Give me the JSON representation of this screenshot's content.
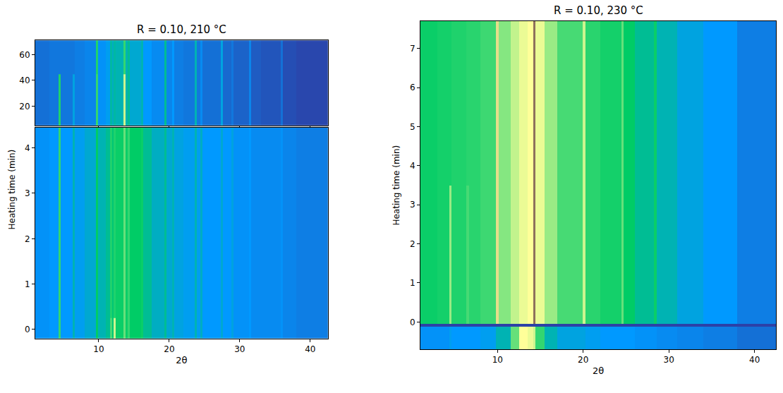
{
  "chart_data": [
    {
      "type": "heatmap",
      "title": "R = 0.10, 210 °C",
      "x_label": "2θ",
      "y_label": "Heating time (min)",
      "xlim": [
        1,
        42.5
      ],
      "xticks": [
        10,
        20,
        30,
        40
      ],
      "zlim": [
        0,
        1
      ],
      "grid": false,
      "panels": [
        {
          "ylim": [
            5,
            71
          ],
          "yticks": [
            20,
            40,
            60
          ],
          "x_edges": [
            1,
            3,
            4.35,
            4.65,
            6.35,
            6.65,
            8,
            9.65,
            9.95,
            11,
            11.65,
            11.95,
            12.15,
            12.45,
            13.55,
            13.85,
            14.15,
            14.45,
            16.05,
            16.35,
            17.5,
            19.35,
            19.65,
            20.45,
            20.75,
            22,
            23.65,
            23.95,
            24.45,
            24.75,
            27.35,
            27.65,
            28.85,
            29.15,
            31.35,
            31.65,
            33,
            35.85,
            36.15,
            38,
            42.5
          ],
          "y_edges": [
            5,
            45,
            71
          ],
          "z": [
            [
              0.09,
              0.1,
              0.28,
              0.1,
              0.17,
              0.11,
              0.12,
              0.3,
              0.14,
              0.16,
              0.21,
              0.19,
              0.21,
              0.2,
              0.45,
              0.2,
              0.22,
              0.18,
              0.2,
              0.15,
              0.13,
              0.22,
              0.12,
              0.15,
              0.11,
              0.1,
              0.2,
              0.1,
              0.13,
              0.09,
              0.17,
              0.08,
              0.1,
              0.07,
              0.12,
              0.06,
              0.05,
              0.09,
              0.04,
              0.03
            ],
            [
              0.09,
              0.1,
              0.1,
              0.1,
              0.1,
              0.11,
              0.12,
              0.28,
              0.14,
              0.16,
              0.21,
              0.19,
              0.21,
              0.2,
              0.3,
              0.2,
              0.22,
              0.18,
              0.2,
              0.15,
              0.13,
              0.22,
              0.12,
              0.15,
              0.11,
              0.1,
              0.2,
              0.1,
              0.13,
              0.09,
              0.17,
              0.08,
              0.1,
              0.07,
              0.12,
              0.06,
              0.05,
              0.09,
              0.04,
              0.03
            ]
          ]
        },
        {
          "ylim": [
            -0.2,
            4.45
          ],
          "yticks": [
            0,
            1,
            2,
            3,
            4
          ],
          "x_edges": [
            1,
            3,
            4.35,
            4.65,
            6.35,
            6.65,
            8,
            9.65,
            9.95,
            11,
            11.65,
            11.95,
            12.15,
            12.45,
            13.55,
            13.85,
            14.15,
            14.45,
            16.05,
            16.35,
            17.5,
            19.35,
            19.65,
            20.45,
            20.75,
            22,
            23.65,
            23.95,
            24.45,
            24.75,
            27.35,
            27.65,
            28.85,
            29.15,
            31.35,
            31.65,
            33,
            35.85,
            36.15,
            38,
            42.5
          ],
          "y_edges": [
            -0.2,
            0.25,
            4.45
          ],
          "z": [
            [
              0.14,
              0.15,
              0.3,
              0.15,
              0.2,
              0.16,
              0.18,
              0.25,
              0.2,
              0.22,
              0.32,
              0.24,
              0.45,
              0.26,
              0.35,
              0.26,
              0.3,
              0.25,
              0.26,
              0.22,
              0.19,
              0.22,
              0.18,
              0.2,
              0.17,
              0.16,
              0.2,
              0.16,
              0.19,
              0.15,
              0.18,
              0.15,
              0.17,
              0.14,
              0.15,
              0.13,
              0.13,
              0.14,
              0.12,
              0.11
            ],
            [
              0.14,
              0.15,
              0.3,
              0.15,
              0.2,
              0.16,
              0.18,
              0.25,
              0.2,
              0.22,
              0.28,
              0.24,
              0.28,
              0.26,
              0.35,
              0.26,
              0.3,
              0.25,
              0.26,
              0.22,
              0.19,
              0.22,
              0.18,
              0.2,
              0.17,
              0.16,
              0.2,
              0.16,
              0.19,
              0.15,
              0.18,
              0.15,
              0.17,
              0.14,
              0.15,
              0.13,
              0.13,
              0.14,
              0.12,
              0.11
            ]
          ]
        }
      ]
    },
    {
      "type": "heatmap",
      "title": "R = 0.10, 230 °C",
      "x_label": "2θ",
      "y_label": "Heating time (min)",
      "xlim": [
        1,
        42.5
      ],
      "xticks": [
        10,
        20,
        30,
        40
      ],
      "zlim": [
        0,
        1
      ],
      "grid": false,
      "panels": [
        {
          "ylim": [
            -0.7,
            7.7
          ],
          "yticks": [
            0,
            1,
            2,
            3,
            4,
            5,
            6,
            7
          ],
          "x_edges": [
            1,
            3,
            4.35,
            4.65,
            6.35,
            6.65,
            8,
            9.85,
            10.15,
            11.5,
            12.5,
            13.5,
            14.15,
            14.45,
            15.5,
            17,
            19.95,
            20.25,
            22,
            24.45,
            24.75,
            26,
            28.25,
            28.55,
            31,
            34,
            38,
            42.5
          ],
          "y_edges": [
            -0.7,
            -0.12,
            -0.05,
            3.5,
            7.7
          ],
          "z": [
            [
              0.14,
              0.14,
              0.16,
              0.15,
              0.15,
              0.15,
              0.16,
              0.2,
              0.2,
              0.35,
              0.5,
              0.48,
              0.45,
              0.3,
              0.2,
              0.17,
              0.17,
              0.16,
              0.15,
              0.15,
              0.15,
              0.14,
              0.14,
              0.13,
              0.12,
              0.11,
              0.09
            ],
            [
              0.02,
              0.02,
              0.02,
              0.02,
              0.02,
              0.02,
              0.02,
              0.02,
              0.02,
              0.02,
              0.02,
              0.02,
              0.02,
              0.02,
              0.02,
              0.02,
              0.02,
              0.02,
              0.02,
              0.02,
              0.02,
              0.02,
              0.02,
              0.02,
              0.02,
              0.02,
              0.02
            ],
            [
              0.26,
              0.27,
              0.4,
              0.28,
              0.32,
              0.29,
              0.31,
              0.55,
              0.38,
              0.44,
              0.48,
              0.5,
              0.72,
              0.48,
              0.4,
              0.32,
              0.45,
              0.29,
              0.27,
              0.35,
              0.25,
              0.22,
              0.26,
              0.2,
              0.17,
              0.15,
              0.11
            ],
            [
              0.26,
              0.27,
              0.27,
              0.28,
              0.29,
              0.29,
              0.31,
              0.55,
              0.38,
              0.44,
              0.48,
              0.5,
              0.72,
              0.48,
              0.4,
              0.32,
              0.45,
              0.29,
              0.27,
              0.35,
              0.25,
              0.22,
              0.26,
              0.2,
              0.17,
              0.15,
              0.11
            ]
          ]
        }
      ]
    }
  ]
}
